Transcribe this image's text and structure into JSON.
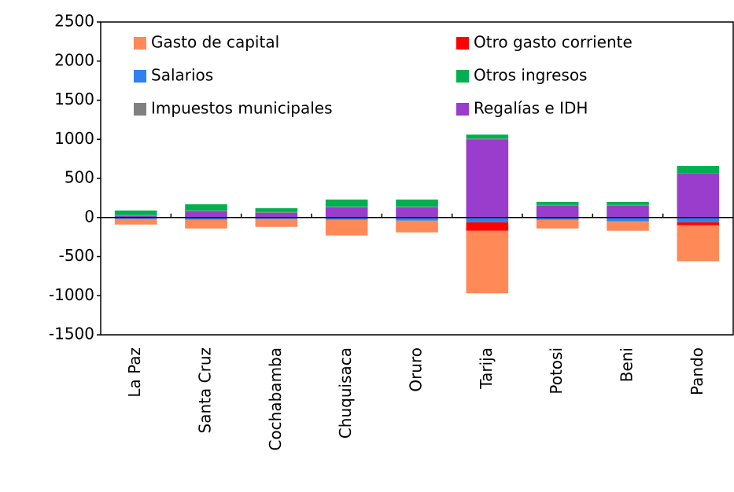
{
  "chart_data": {
    "type": "bar",
    "stacked": true,
    "categories": [
      "La Paz",
      "Santa Cruz",
      "Cochabamba",
      "Chuquisaca",
      "Oruro",
      "Tarija",
      "Potosi",
      "Beni",
      "Pando"
    ],
    "series": [
      {
        "name": "Gasto de capital",
        "color": "#ff8a57",
        "values": [
          -70,
          -110,
          -100,
          -200,
          -150,
          -800,
          -110,
          -120,
          -460
        ]
      },
      {
        "name": "Otro gasto corriente",
        "color": "#ff0000",
        "values": [
          0,
          0,
          0,
          0,
          0,
          -110,
          0,
          0,
          -40
        ]
      },
      {
        "name": "Salarios",
        "color": "#2f80f0",
        "values": [
          -20,
          -30,
          -20,
          -30,
          -40,
          -60,
          -30,
          -50,
          -60
        ]
      },
      {
        "name": "Otros ingresos",
        "color": "#00b050",
        "values": [
          60,
          80,
          50,
          90,
          90,
          50,
          40,
          40,
          90
        ]
      },
      {
        "name": "Impuestos municipales",
        "color": "#808080",
        "values": [
          10,
          10,
          10,
          10,
          10,
          10,
          10,
          10,
          10
        ]
      },
      {
        "name": "Regalías e IDH",
        "color": "#9a3ccc",
        "values": [
          20,
          80,
          60,
          130,
          130,
          1000,
          150,
          150,
          560
        ]
      }
    ],
    "ylim": [
      -1500,
      2500
    ],
    "yticks": [
      -1500,
      -1000,
      -500,
      0,
      500,
      1000,
      1500,
      2000,
      2500
    ]
  }
}
